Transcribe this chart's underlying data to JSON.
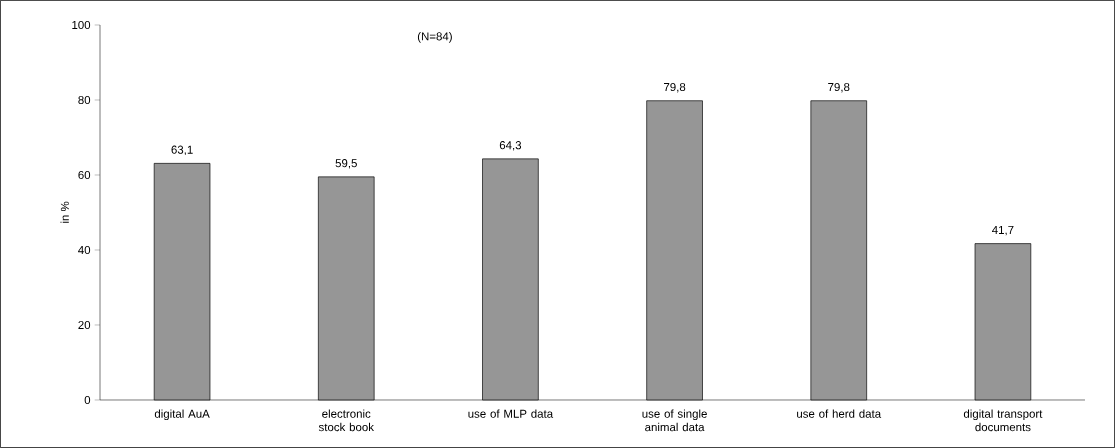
{
  "chart_data": {
    "type": "bar",
    "ylabel": "in %",
    "annotations": [
      "(N=84)"
    ],
    "categories": [
      "digital AuA",
      "electronic stock book",
      "use of MLP data",
      "use of single animal data",
      "use of herd data",
      "digital transport documents"
    ],
    "values": [
      63.1,
      59.5,
      64.3,
      79.8,
      79.8,
      41.7
    ],
    "value_labels": [
      "63,1",
      "59,5",
      "64,3",
      "79,8",
      "79,8",
      "41,7"
    ],
    "color": "#969696",
    "ylim": [
      0,
      100
    ],
    "yticks": [
      0,
      20,
      40,
      60,
      80,
      100
    ],
    "grid": false
  }
}
